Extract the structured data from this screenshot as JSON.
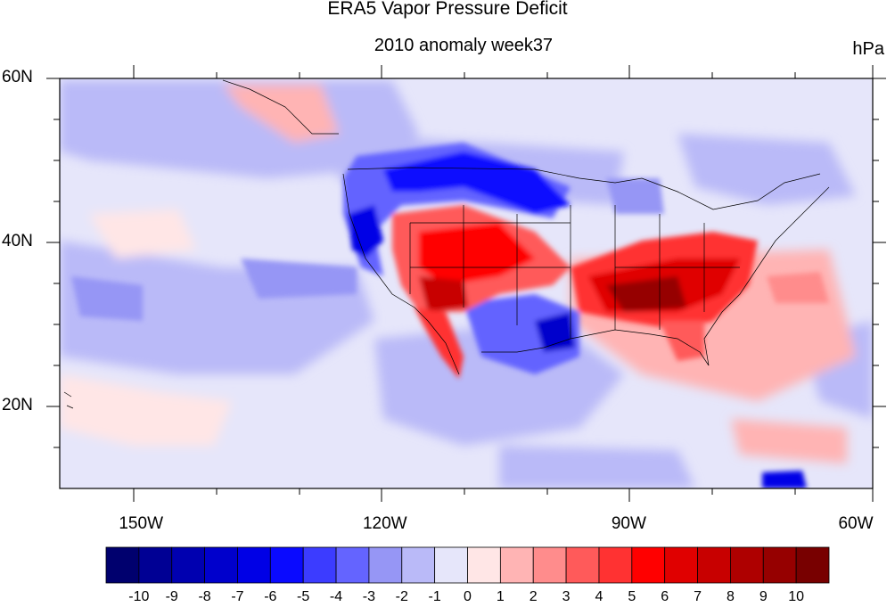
{
  "figure": {
    "title": "ERA5 Vapor Pressure Deficit",
    "subtitle": "2010 anomaly week37",
    "units": "hPa"
  },
  "map": {
    "projection": "cylindrical equidistant",
    "lon_range": [
      -160,
      -60
    ],
    "lat_range": [
      10,
      60
    ],
    "lat_labels": [
      {
        "value": 60,
        "text": "60N"
      },
      {
        "value": 40,
        "text": "40N"
      },
      {
        "value": 20,
        "text": "20N"
      }
    ],
    "lon_labels": [
      {
        "value": -150,
        "text": "150W"
      },
      {
        "value": -120,
        "text": "120W"
      },
      {
        "value": -90,
        "text": "90W"
      },
      {
        "value": -60,
        "text": "60W"
      }
    ]
  },
  "colorbar": {
    "labels": [
      "-10",
      "-9",
      "-8",
      "-7",
      "-6",
      "-5",
      "-4",
      "-3",
      "-2",
      "-1",
      "0",
      "1",
      "2",
      "3",
      "4",
      "5",
      "6",
      "7",
      "8",
      "9",
      "10"
    ],
    "colors": [
      "#00006e",
      "#000094",
      "#0000b0",
      "#0000cc",
      "#0000e6",
      "#0a0aff",
      "#3c3cff",
      "#6464ff",
      "#9696f5",
      "#babaf8",
      "#e6e6fa",
      "#ffe6e6",
      "#ffb4b4",
      "#ff8c8c",
      "#ff5a5a",
      "#ff3232",
      "#ff0000",
      "#e00000",
      "#c80000",
      "#ae0000",
      "#960000",
      "#780000"
    ]
  },
  "chart_data": {
    "type": "heatmap",
    "title": "ERA5 Vapor Pressure Deficit",
    "subtitle": "2010 anomaly week37",
    "units": "hPa",
    "x_range": [
      -160,
      -60
    ],
    "y_range": [
      10,
      60
    ],
    "color_levels": [
      -10,
      -9,
      -8,
      -7,
      -6,
      -5,
      -4,
      -3,
      -2,
      -1,
      0,
      1,
      2,
      3,
      4,
      5,
      6,
      7,
      8,
      9,
      10
    ],
    "regions": [
      {
        "lon": -112,
        "lat": 34,
        "value": 8
      },
      {
        "lon": -105,
        "lat": 40,
        "value": 6
      },
      {
        "lon": -88,
        "lat": 33,
        "value": 9
      },
      {
        "lon": -80,
        "lat": 30,
        "value": 5
      },
      {
        "lon": -70,
        "lat": 33,
        "value": 3
      },
      {
        "lon": -103,
        "lat": 47,
        "value": -7
      },
      {
        "lon": -123,
        "lat": 44,
        "value": -6
      },
      {
        "lon": -97,
        "lat": 29,
        "value": -6
      },
      {
        "lon": -150,
        "lat": 33,
        "value": -3
      },
      {
        "lon": -147,
        "lat": 56,
        "value": 3
      }
    ]
  }
}
